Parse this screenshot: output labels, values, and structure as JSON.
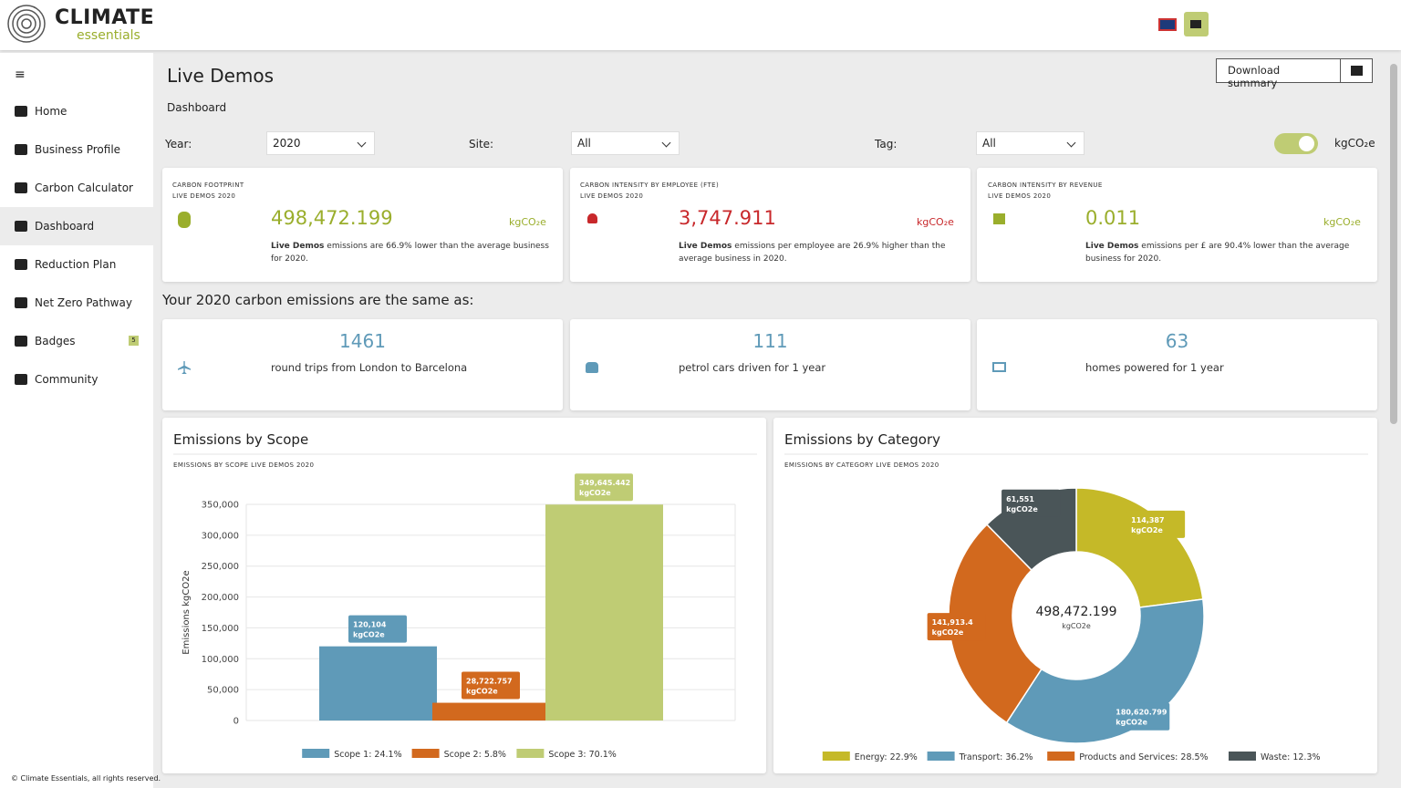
{
  "header": {
    "logo_title": "CLIMATE",
    "logo_subtitle": "essentials"
  },
  "sidebar": {
    "items": [
      "Home",
      "Business Profile",
      "Carbon Calculator",
      "Dashboard",
      "Reduction Plan",
      "Net Zero Pathway",
      "Badges",
      "Community"
    ],
    "badge_count": 5
  },
  "page": {
    "title": "Live Demos",
    "breadcrumb": "Dashboard",
    "download_button": "Download summary"
  },
  "filters": {
    "year_label": "Year:",
    "year": "2020",
    "site_label": "Site:",
    "site": "All",
    "tag_label": "Tag:",
    "tag": "All",
    "unit": "kgCO₂e"
  },
  "kpi_cards": [
    {
      "title": "CARBON FOOTPRINT",
      "subtitle": "LIVE DEMOS 2020",
      "value": "498,472.199",
      "unit": "kgCO₂e",
      "description_bold": "Live Demos",
      "description": " emissions are 66.9% lower than the average business for 2020."
    },
    {
      "title": "CARBON INTENSITY BY EMPLOYEE (FTE)",
      "subtitle": "LIVE DEMOS 2020",
      "value": "3,747.911",
      "unit": "kgCO₂e",
      "description_bold": "Live Demos",
      "description": " emissions per employee are 26.9% higher than the average business in 2020."
    },
    {
      "title": "CARBON INTENSITY BY REVENUE",
      "subtitle": "LIVE DEMOS 2020",
      "value": "0.011",
      "unit": "kgCO₂e",
      "description_bold": "Live Demos",
      "description": " emissions per £ are 90.4% lower than the average business for 2020."
    }
  ],
  "equivalents": {
    "heading": "Your 2020 carbon emissions are the same as:",
    "items": [
      {
        "value": 1461,
        "label": "round trips from London to Barcelona"
      },
      {
        "value": 111,
        "label": "petrol cars driven for 1 year"
      },
      {
        "value": 63,
        "label": "homes powered for 1 year"
      }
    ]
  },
  "footer": "© Climate Essentials, all rights reserved.",
  "chart_data": [
    {
      "type": "bar",
      "title": "Emissions by Scope",
      "subtitle": "EMISSIONS BY SCOPE LIVE DEMOS 2020",
      "y_label": "Emissions kgCO2e",
      "categories": [
        "Scope 1: 24.1%",
        "Scope 2: 5.8%",
        "Scope 3: 70.1%"
      ],
      "values": [
        120104,
        28722.757,
        349645.442
      ],
      "value_labels": [
        "120,104",
        "28,722.757",
        "349,645.442"
      ],
      "value_unit": "kgCO2e",
      "colors": [
        "#5f9ab8",
        "#d2691e",
        "#bfcc74"
      ],
      "ylim": [
        0,
        350000
      ],
      "yticks": [
        0,
        {
          "value": 50000,
          "label": "50,000"
        },
        {
          "value": 100000,
          "label": "100,000"
        },
        {
          "value": 150000,
          "label": "150,000"
        },
        {
          "value": 200000,
          "label": "200,000"
        },
        {
          "value": 250000,
          "label": "250,000"
        },
        {
          "value": 300000,
          "label": "300,000"
        },
        {
          "value": 350000,
          "label": "350,000"
        }
      ],
      "grid": true
    },
    {
      "type": "pie",
      "donut": true,
      "title": "Emissions by Category",
      "subtitle": "EMISSIONS BY CATEGORY LIVE DEMOS 2020",
      "categories": [
        "Energy: 22.9%",
        "Transport: 36.2%",
        "Products and Services: 28.5%",
        "Waste: 12.3%"
      ],
      "values": [
        114387,
        180620.799,
        141913.4,
        61551
      ],
      "value_labels": [
        "114,387",
        "180,620.799",
        "141,913.4",
        "61,551"
      ],
      "value_unit": "kgCO2e",
      "colors": [
        "#c5b928",
        "#5f9ab8",
        "#d2691e",
        "#4a5558"
      ],
      "center_value": "498,472.199",
      "center_unit": "kgCO2e"
    }
  ]
}
